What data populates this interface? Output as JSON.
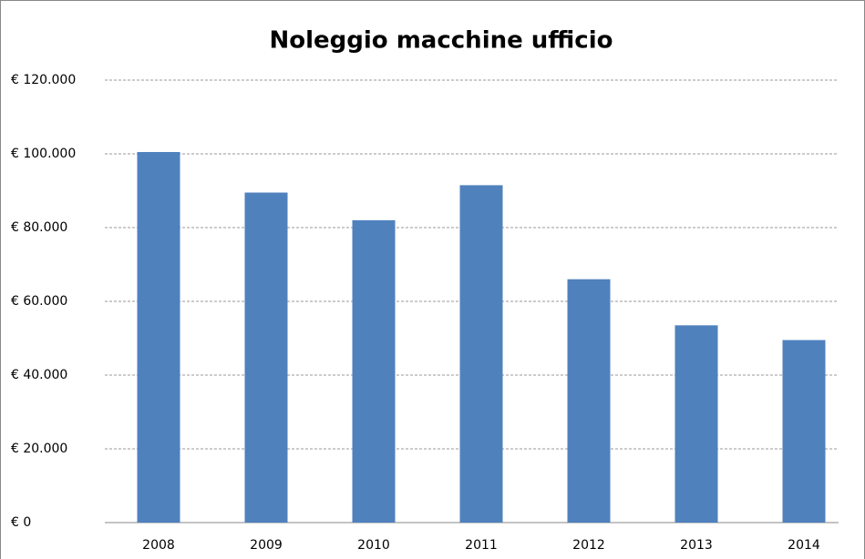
{
  "chart_data": {
    "type": "bar",
    "title": "Noleggio macchine ufficio",
    "categories": [
      "2008",
      "2009",
      "2010",
      "2011",
      "2012",
      "2013",
      "2014"
    ],
    "values": [
      100500,
      89500,
      82000,
      91500,
      66000,
      53500,
      49500
    ],
    "color": "#4f81bd",
    "ylim": [
      0,
      120000
    ],
    "yticks": [
      {
        "value": 0,
        "label": "€ 0"
      },
      {
        "value": 20000,
        "label": "€ 20.000"
      },
      {
        "value": 40000,
        "label": "€ 40.000"
      },
      {
        "value": 60000,
        "label": "€ 60.000"
      },
      {
        "value": 80000,
        "label": "€ 80.000"
      },
      {
        "value": 100000,
        "label": "€ 100.000"
      },
      {
        "value": 120000,
        "label": "€ 120.000"
      }
    ],
    "grid": true
  }
}
